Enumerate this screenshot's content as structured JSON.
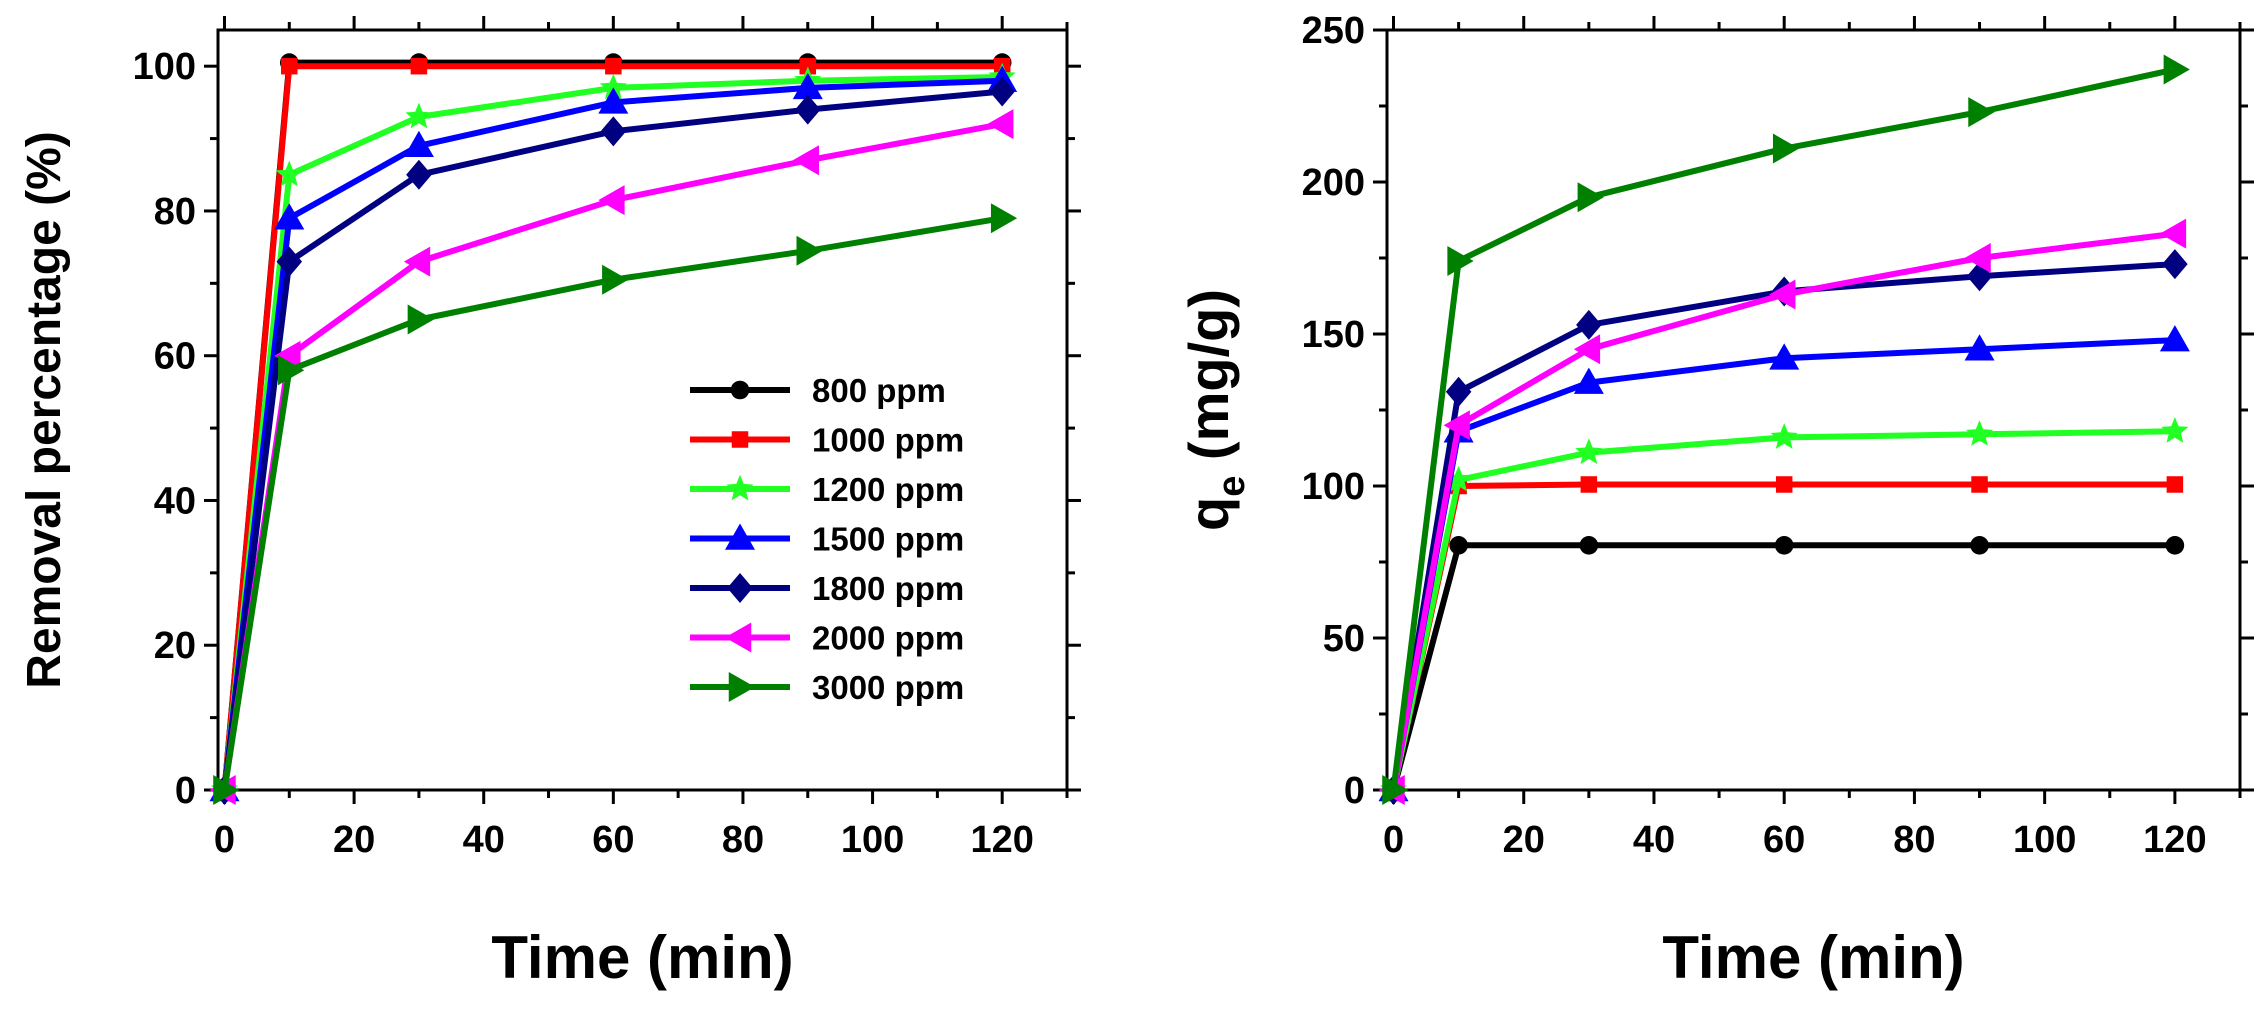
{
  "legend": [
    {
      "name": "800 ppm",
      "color": "#000000",
      "marker": "circle"
    },
    {
      "name": "1000 ppm",
      "color": "#ff0000",
      "marker": "square"
    },
    {
      "name": "1200 ppm",
      "color": "#22ff22",
      "marker": "star"
    },
    {
      "name": "1500 ppm",
      "color": "#0000ff",
      "marker": "triangle-up"
    },
    {
      "name": "1800 ppm",
      "color": "#000080",
      "marker": "diamond"
    },
    {
      "name": "2000 ppm",
      "color": "#ff00ff",
      "marker": "triangle-left"
    },
    {
      "name": "3000 ppm",
      "color": "#008000",
      "marker": "triangle-right"
    }
  ],
  "chart_data": [
    {
      "type": "line",
      "xlabel": "Time (min)",
      "ylabel": "Removal percentage (%)",
      "xlim": [
        -1,
        130
      ],
      "ylim": [
        0,
        105
      ],
      "xticks": [
        0,
        20,
        40,
        60,
        80,
        100,
        120
      ],
      "yticks": [
        0,
        20,
        40,
        60,
        80,
        100
      ],
      "legend_position": "center-right",
      "x": [
        0,
        10,
        30,
        60,
        90,
        120
      ],
      "series": [
        {
          "name": "800 ppm",
          "color": "#000000",
          "marker": "circle",
          "values": [
            0,
            100.5,
            100.5,
            100.5,
            100.5,
            100.5
          ]
        },
        {
          "name": "1000 ppm",
          "color": "#ff0000",
          "marker": "square",
          "values": [
            0,
            100,
            100,
            100,
            100,
            100
          ]
        },
        {
          "name": "1200 ppm",
          "color": "#22ff22",
          "marker": "star",
          "values": [
            0,
            85,
            93,
            97,
            98,
            98.5
          ]
        },
        {
          "name": "1500 ppm",
          "color": "#0000ff",
          "marker": "triangle-up",
          "values": [
            0,
            79,
            89,
            95,
            97,
            98
          ]
        },
        {
          "name": "1800 ppm",
          "color": "#000080",
          "marker": "diamond",
          "values": [
            0,
            73,
            85,
            91,
            94,
            96.5
          ]
        },
        {
          "name": "2000 ppm",
          "color": "#ff00ff",
          "marker": "triangle-left",
          "values": [
            0,
            60,
            73,
            81.5,
            87,
            92
          ]
        },
        {
          "name": "3000 ppm",
          "color": "#008000",
          "marker": "triangle-right",
          "values": [
            0,
            58,
            65,
            70.5,
            74.5,
            79
          ]
        }
      ]
    },
    {
      "type": "line",
      "xlabel": "Time (min)",
      "ylabel": "q",
      "ylabel_subscript": "e",
      "ylabel_unit": " (mg/g)",
      "xlim": [
        -1,
        130
      ],
      "ylim": [
        0,
        250
      ],
      "xticks": [
        0,
        20,
        40,
        60,
        80,
        100,
        120
      ],
      "yticks": [
        0,
        50,
        100,
        150,
        200,
        250
      ],
      "x": [
        0,
        10,
        30,
        60,
        90,
        120
      ],
      "series": [
        {
          "name": "800 ppm",
          "color": "#000000",
          "marker": "circle",
          "values": [
            0,
            80.5,
            80.5,
            80.5,
            80.5,
            80.5
          ]
        },
        {
          "name": "1000 ppm",
          "color": "#ff0000",
          "marker": "square",
          "values": [
            0,
            100,
            100.5,
            100.5,
            100.5,
            100.5
          ]
        },
        {
          "name": "1200 ppm",
          "color": "#22ff22",
          "marker": "star",
          "values": [
            0,
            102,
            111,
            116,
            117,
            118
          ]
        },
        {
          "name": "1500 ppm",
          "color": "#0000ff",
          "marker": "triangle-up",
          "values": [
            0,
            118,
            134,
            142,
            145,
            148
          ]
        },
        {
          "name": "1800 ppm",
          "color": "#000080",
          "marker": "diamond",
          "values": [
            0,
            131,
            153,
            164,
            169,
            173
          ]
        },
        {
          "name": "2000 ppm",
          "color": "#ff00ff",
          "marker": "triangle-left",
          "values": [
            0,
            120,
            145,
            163,
            175,
            183
          ]
        },
        {
          "name": "3000 ppm",
          "color": "#008000",
          "marker": "triangle-right",
          "values": [
            0,
            174,
            195,
            211,
            223,
            237
          ]
        }
      ]
    }
  ]
}
